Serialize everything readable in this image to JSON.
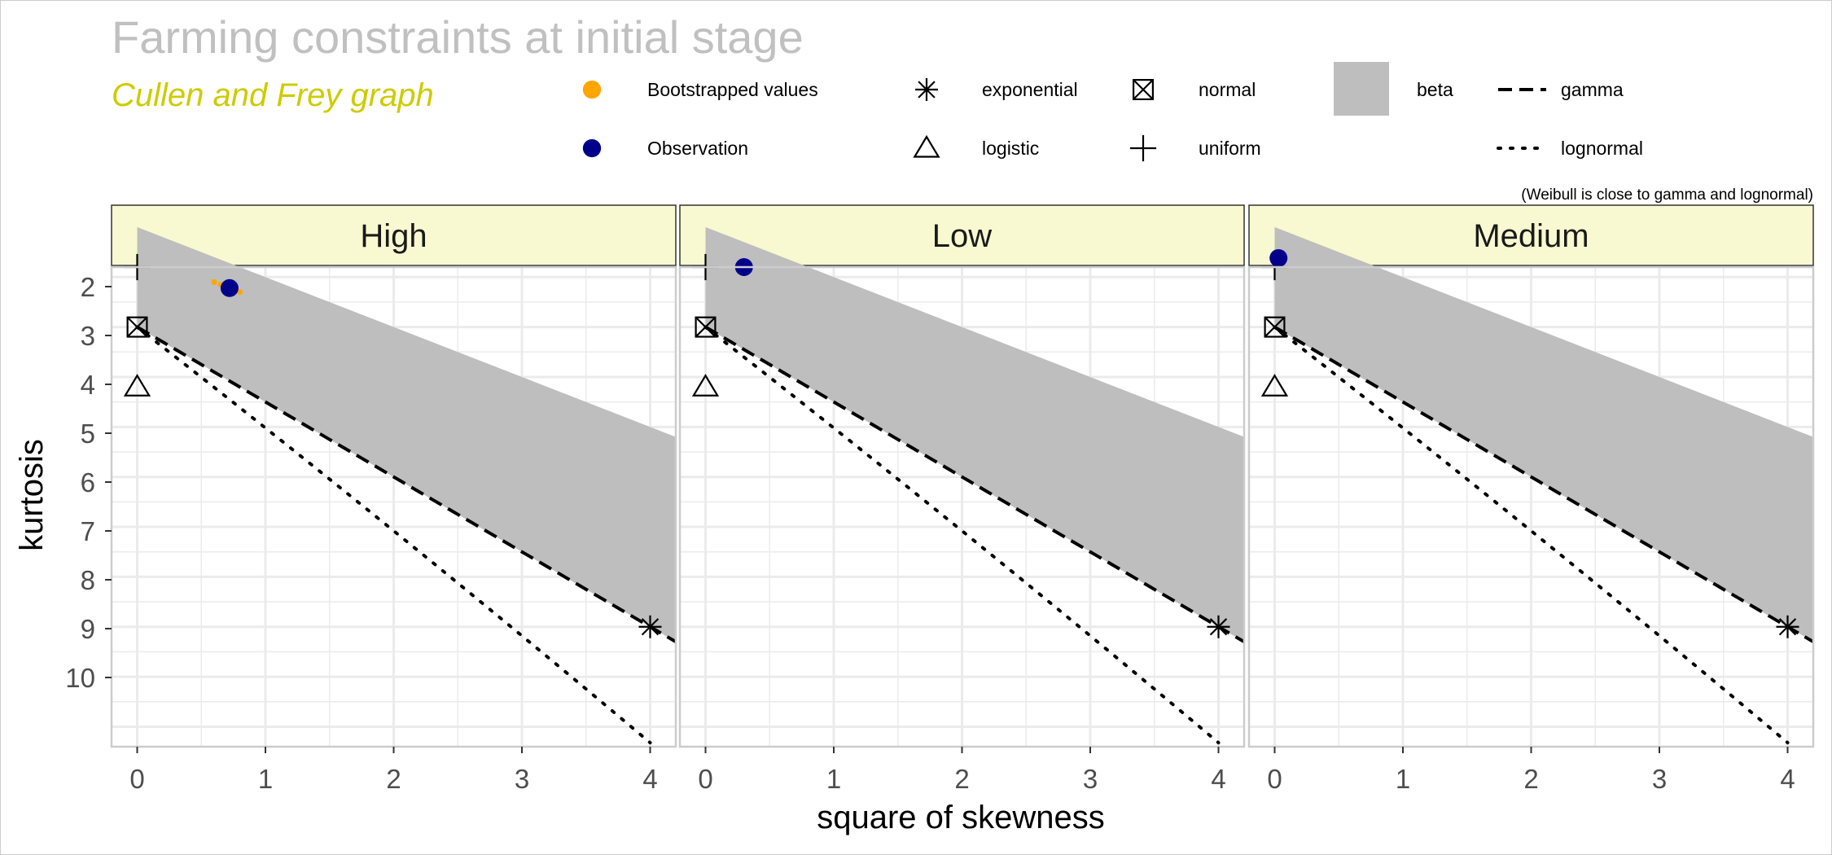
{
  "chart_data": {
    "type": "scatter",
    "title": "Farming constraints at initial stage",
    "subtitle": "Cullen and Frey graph",
    "xlabel": "square of skewness",
    "ylabel": "kurtosis",
    "xlim": [
      -0.2,
      4.2
    ],
    "ylim": [
      11.4,
      1.8
    ],
    "y_reversed": true,
    "grid": true,
    "x_ticks": [
      0,
      1,
      2,
      3,
      4
    ],
    "y_ticks": [
      2,
      3,
      4,
      5,
      6,
      7,
      8,
      9,
      10
    ],
    "legend_note": "(Weibull is close to gamma and lognormal)",
    "legend": [
      {
        "label": "Bootstrapped values",
        "symbol": "dot",
        "color": "#FFA500"
      },
      {
        "label": "Observation",
        "symbol": "dot",
        "color": "#00008B"
      },
      {
        "label": "exponential",
        "symbol": "asterisk"
      },
      {
        "label": "logistic",
        "symbol": "triangle"
      },
      {
        "label": "normal",
        "symbol": "boxed-x"
      },
      {
        "label": "uniform",
        "symbol": "plus"
      },
      {
        "label": "beta",
        "symbol": "area",
        "color": "#BEBEBE"
      },
      {
        "label": "gamma",
        "symbol": "dashed-line"
      },
      {
        "label": "lognormal",
        "symbol": "dotted-line"
      }
    ],
    "reference_distributions": {
      "uniform": [
        0,
        1.8
      ],
      "normal": [
        0,
        3
      ],
      "logistic": [
        0,
        4.2
      ],
      "exponential": [
        4,
        9
      ],
      "beta_region": {
        "upper_boundary": "kurtosis = square of skewness + 1",
        "lower_boundary": "kurtosis = 1.5 × square of skewness + 3"
      },
      "gamma_line": "kurtosis = 1.5 × square of skewness + 3"
    },
    "panels": [
      {
        "name": "High",
        "observation": [
          0.72,
          2.22
        ],
        "bootstrap": [
          [
            0.6,
            2.1
          ],
          [
            0.65,
            2.15
          ],
          [
            0.7,
            2.2
          ],
          [
            0.75,
            2.25
          ],
          [
            0.8,
            2.3
          ],
          [
            0.68,
            2.18
          ],
          [
            0.77,
            2.27
          ]
        ]
      },
      {
        "name": "Low",
        "observation": [
          0.3,
          1.8
        ],
        "bootstrap": [
          [
            0.29,
            1.79
          ],
          [
            0.31,
            1.81
          ]
        ]
      },
      {
        "name": "Medium",
        "observation": [
          0.03,
          1.62
        ],
        "bootstrap": [
          [
            0.02,
            1.61
          ]
        ]
      }
    ]
  },
  "colors": {
    "panel_header_fill": "#F9F9D1",
    "beta_fill": "#BEBEBE",
    "bootstrap": "#FFA500",
    "observation": "#00008B",
    "title": "#C0C0C0",
    "subtitle": "#CCCC00",
    "grid": "#EBEBEB"
  }
}
